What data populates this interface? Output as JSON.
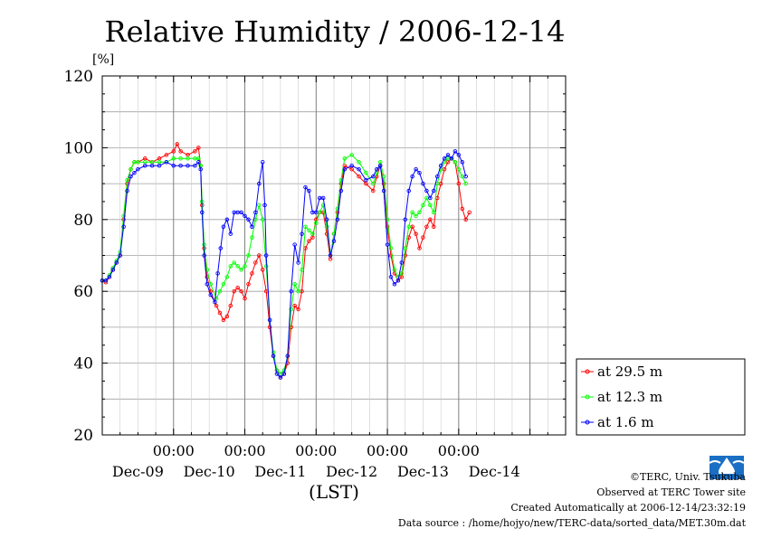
{
  "chart_data": {
    "type": "line",
    "title": "Relative Humidity / 2006-12-14",
    "ylabel": "[%]",
    "xlabel": "(LST)",
    "ylim": [
      20,
      120
    ],
    "yticks": [
      20,
      40,
      60,
      80,
      100,
      120
    ],
    "x_unit": "days since Dec-09 00:00 (LST)",
    "xlim": [
      -1,
      5.5
    ],
    "xticks": [
      {
        "x": 0,
        "time": "00:00",
        "date": "Dec-10"
      },
      {
        "x": 1,
        "time": "00:00",
        "date": "Dec-11"
      },
      {
        "x": 2,
        "time": "00:00",
        "date": "Dec-12"
      },
      {
        "x": 3,
        "time": "00:00",
        "date": "Dec-13"
      },
      {
        "x": 4,
        "time": "00:00",
        "date": "Dec-14"
      }
    ],
    "date_labels": [
      "Dec-09",
      "Dec-10",
      "Dec-11",
      "Dec-12",
      "Dec-13",
      "Dec-14"
    ],
    "grid": true,
    "legend_position": "right",
    "series": [
      {
        "name": "at 29.5 m",
        "color": "#ff0000",
        "points": [
          [
            -1.0,
            63
          ],
          [
            -0.95,
            62.5
          ],
          [
            -0.9,
            64
          ],
          [
            -0.85,
            66
          ],
          [
            -0.8,
            68
          ],
          [
            -0.75,
            70
          ],
          [
            -0.7,
            80
          ],
          [
            -0.65,
            90
          ],
          [
            -0.6,
            94
          ],
          [
            -0.55,
            96
          ],
          [
            -0.5,
            96
          ],
          [
            -0.4,
            97
          ],
          [
            -0.3,
            96
          ],
          [
            -0.2,
            97
          ],
          [
            -0.1,
            98
          ],
          [
            0.0,
            99
          ],
          [
            0.05,
            101
          ],
          [
            0.1,
            99
          ],
          [
            0.2,
            98
          ],
          [
            0.3,
            99
          ],
          [
            0.35,
            100
          ],
          [
            0.38,
            95
          ],
          [
            0.4,
            84
          ],
          [
            0.43,
            72
          ],
          [
            0.47,
            64
          ],
          [
            0.52,
            60
          ],
          [
            0.6,
            56
          ],
          [
            0.65,
            54
          ],
          [
            0.7,
            52
          ],
          [
            0.75,
            53
          ],
          [
            0.8,
            56
          ],
          [
            0.85,
            60
          ],
          [
            0.9,
            61
          ],
          [
            0.95,
            60
          ],
          [
            1.0,
            58
          ],
          [
            1.05,
            62
          ],
          [
            1.1,
            65
          ],
          [
            1.15,
            68
          ],
          [
            1.2,
            70
          ],
          [
            1.25,
            66
          ],
          [
            1.3,
            60
          ],
          [
            1.35,
            50
          ],
          [
            1.4,
            42
          ],
          [
            1.45,
            38
          ],
          [
            1.5,
            36
          ],
          [
            1.55,
            37
          ],
          [
            1.6,
            40
          ],
          [
            1.65,
            50
          ],
          [
            1.7,
            56
          ],
          [
            1.75,
            55
          ],
          [
            1.8,
            60
          ],
          [
            1.85,
            72
          ],
          [
            1.9,
            74
          ],
          [
            1.95,
            75
          ],
          [
            2.0,
            80
          ],
          [
            2.05,
            82
          ],
          [
            2.1,
            82
          ],
          [
            2.15,
            76
          ],
          [
            2.2,
            69
          ],
          [
            2.25,
            76
          ],
          [
            2.3,
            82
          ],
          [
            2.35,
            90
          ],
          [
            2.4,
            95
          ],
          [
            2.5,
            94
          ],
          [
            2.6,
            92
          ],
          [
            2.7,
            90
          ],
          [
            2.8,
            88
          ],
          [
            2.85,
            92
          ],
          [
            2.9,
            95
          ],
          [
            2.95,
            90
          ],
          [
            3.0,
            78
          ],
          [
            3.05,
            70
          ],
          [
            3.1,
            65
          ],
          [
            3.15,
            63
          ],
          [
            3.2,
            64
          ],
          [
            3.25,
            70
          ],
          [
            3.3,
            75
          ],
          [
            3.35,
            78
          ],
          [
            3.4,
            76
          ],
          [
            3.45,
            72
          ],
          [
            3.5,
            75
          ],
          [
            3.55,
            78
          ],
          [
            3.6,
            80
          ],
          [
            3.65,
            78
          ],
          [
            3.7,
            86
          ],
          [
            3.75,
            90
          ],
          [
            3.8,
            94
          ],
          [
            3.85,
            96
          ],
          [
            3.9,
            97
          ],
          [
            3.95,
            96
          ],
          [
            4.0,
            90
          ],
          [
            4.05,
            83
          ],
          [
            4.1,
            80
          ],
          [
            4.15,
            82
          ]
        ]
      },
      {
        "name": "at 12.3 m",
        "color": "#00ff00",
        "points": [
          [
            -1.0,
            63
          ],
          [
            -0.95,
            63
          ],
          [
            -0.9,
            64.5
          ],
          [
            -0.85,
            66.5
          ],
          [
            -0.8,
            68.5
          ],
          [
            -0.75,
            71
          ],
          [
            -0.7,
            81
          ],
          [
            -0.65,
            91
          ],
          [
            -0.6,
            94
          ],
          [
            -0.55,
            96
          ],
          [
            -0.5,
            96
          ],
          [
            -0.4,
            96
          ],
          [
            -0.3,
            96
          ],
          [
            -0.2,
            96
          ],
          [
            -0.1,
            96
          ],
          [
            0.0,
            97
          ],
          [
            0.1,
            97
          ],
          [
            0.2,
            97
          ],
          [
            0.3,
            97
          ],
          [
            0.35,
            97
          ],
          [
            0.38,
            95
          ],
          [
            0.4,
            85
          ],
          [
            0.43,
            73
          ],
          [
            0.47,
            66
          ],
          [
            0.52,
            62
          ],
          [
            0.6,
            58
          ],
          [
            0.65,
            60
          ],
          [
            0.7,
            62
          ],
          [
            0.75,
            64
          ],
          [
            0.8,
            67
          ],
          [
            0.85,
            68
          ],
          [
            0.9,
            67
          ],
          [
            0.95,
            66
          ],
          [
            1.0,
            67
          ],
          [
            1.05,
            70
          ],
          [
            1.1,
            75
          ],
          [
            1.15,
            80
          ],
          [
            1.2,
            84
          ],
          [
            1.25,
            80
          ],
          [
            1.3,
            67
          ],
          [
            1.35,
            52
          ],
          [
            1.4,
            43
          ],
          [
            1.45,
            38
          ],
          [
            1.5,
            37
          ],
          [
            1.55,
            38
          ],
          [
            1.6,
            42
          ],
          [
            1.65,
            55
          ],
          [
            1.7,
            62
          ],
          [
            1.75,
            60
          ],
          [
            1.8,
            66
          ],
          [
            1.85,
            78
          ],
          [
            1.9,
            77
          ],
          [
            1.95,
            76
          ],
          [
            2.0,
            79
          ],
          [
            2.05,
            82
          ],
          [
            2.1,
            84
          ],
          [
            2.15,
            78
          ],
          [
            2.2,
            70
          ],
          [
            2.25,
            76
          ],
          [
            2.3,
            83
          ],
          [
            2.35,
            91
          ],
          [
            2.4,
            97
          ],
          [
            2.5,
            98
          ],
          [
            2.6,
            96
          ],
          [
            2.7,
            93
          ],
          [
            2.8,
            90
          ],
          [
            2.85,
            93
          ],
          [
            2.9,
            96
          ],
          [
            2.95,
            92
          ],
          [
            3.0,
            80
          ],
          [
            3.05,
            72
          ],
          [
            3.1,
            66
          ],
          [
            3.15,
            64
          ],
          [
            3.2,
            65
          ],
          [
            3.25,
            72
          ],
          [
            3.3,
            78
          ],
          [
            3.35,
            82
          ],
          [
            3.4,
            81
          ],
          [
            3.45,
            82
          ],
          [
            3.5,
            84
          ],
          [
            3.55,
            86
          ],
          [
            3.6,
            84
          ],
          [
            3.65,
            82
          ],
          [
            3.7,
            90
          ],
          [
            3.75,
            94
          ],
          [
            3.8,
            96
          ],
          [
            3.85,
            97
          ],
          [
            3.9,
            97
          ],
          [
            3.95,
            96
          ],
          [
            4.0,
            94
          ],
          [
            4.05,
            92
          ],
          [
            4.1,
            90
          ]
        ]
      },
      {
        "name": "at 1.6 m",
        "color": "#0000ff",
        "points": [
          [
            -1.0,
            63
          ],
          [
            -0.95,
            63
          ],
          [
            -0.9,
            64
          ],
          [
            -0.85,
            66
          ],
          [
            -0.8,
            68
          ],
          [
            -0.75,
            70
          ],
          [
            -0.7,
            78
          ],
          [
            -0.65,
            88
          ],
          [
            -0.6,
            92
          ],
          [
            -0.55,
            93
          ],
          [
            -0.5,
            94
          ],
          [
            -0.4,
            95
          ],
          [
            -0.3,
            95
          ],
          [
            -0.2,
            95
          ],
          [
            -0.1,
            96
          ],
          [
            0.0,
            95
          ],
          [
            0.1,
            95
          ],
          [
            0.2,
            95
          ],
          [
            0.3,
            95
          ],
          [
            0.35,
            96
          ],
          [
            0.38,
            94
          ],
          [
            0.4,
            82
          ],
          [
            0.43,
            70
          ],
          [
            0.47,
            62
          ],
          [
            0.52,
            59
          ],
          [
            0.58,
            57
          ],
          [
            0.62,
            65
          ],
          [
            0.66,
            72
          ],
          [
            0.7,
            78
          ],
          [
            0.75,
            80
          ],
          [
            0.8,
            76
          ],
          [
            0.85,
            82
          ],
          [
            0.9,
            82
          ],
          [
            0.95,
            82
          ],
          [
            1.0,
            81
          ],
          [
            1.05,
            80
          ],
          [
            1.1,
            78
          ],
          [
            1.15,
            82
          ],
          [
            1.2,
            90
          ],
          [
            1.25,
            96
          ],
          [
            1.28,
            84
          ],
          [
            1.3,
            70
          ],
          [
            1.35,
            52
          ],
          [
            1.4,
            42
          ],
          [
            1.45,
            37
          ],
          [
            1.5,
            36
          ],
          [
            1.55,
            37
          ],
          [
            1.6,
            42
          ],
          [
            1.65,
            60
          ],
          [
            1.7,
            73
          ],
          [
            1.75,
            68
          ],
          [
            1.8,
            76
          ],
          [
            1.85,
            89
          ],
          [
            1.9,
            88
          ],
          [
            1.95,
            82
          ],
          [
            2.0,
            82
          ],
          [
            2.05,
            86
          ],
          [
            2.1,
            86
          ],
          [
            2.15,
            80
          ],
          [
            2.2,
            70
          ],
          [
            2.25,
            74
          ],
          [
            2.3,
            80
          ],
          [
            2.35,
            88
          ],
          [
            2.4,
            94
          ],
          [
            2.5,
            95
          ],
          [
            2.6,
            94
          ],
          [
            2.7,
            91
          ],
          [
            2.8,
            92
          ],
          [
            2.85,
            94
          ],
          [
            2.9,
            95
          ],
          [
            2.95,
            88
          ],
          [
            3.0,
            73
          ],
          [
            3.05,
            64
          ],
          [
            3.1,
            62
          ],
          [
            3.15,
            63
          ],
          [
            3.2,
            68
          ],
          [
            3.25,
            80
          ],
          [
            3.3,
            88
          ],
          [
            3.35,
            92
          ],
          [
            3.4,
            94
          ],
          [
            3.45,
            93
          ],
          [
            3.5,
            90
          ],
          [
            3.55,
            88
          ],
          [
            3.6,
            86
          ],
          [
            3.65,
            88
          ],
          [
            3.7,
            92
          ],
          [
            3.75,
            95
          ],
          [
            3.8,
            97
          ],
          [
            3.85,
            98
          ],
          [
            3.9,
            97
          ],
          [
            3.95,
            99
          ],
          [
            4.0,
            98
          ],
          [
            4.05,
            96
          ],
          [
            4.1,
            92
          ]
        ]
      }
    ]
  },
  "footer": {
    "copyright": "©TERC, Univ. Tsukuba",
    "observed": "Observed at TERC Tower site",
    "created": "Created Automatically at 2006-12-14/23:32:19",
    "source": "Data source : /home/hojyo/new/TERC-data/sorted_data/MET.30m.dat"
  },
  "logo": {
    "label": "TERC",
    "color": "#1a6fc4"
  }
}
